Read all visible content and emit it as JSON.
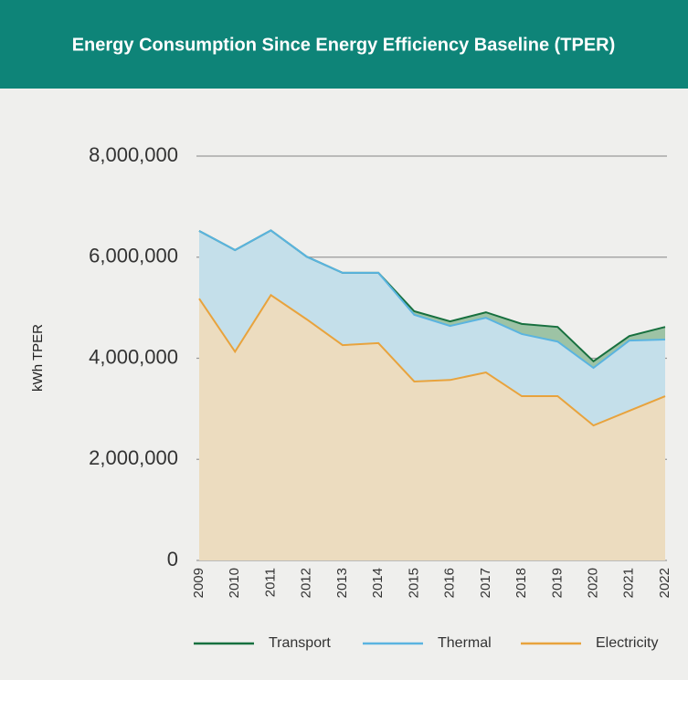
{
  "chart_data": {
    "type": "stacked_area",
    "title": "Energy Consumption Since Energy Efficiency Baseline (TPER)",
    "y_label": "kWh TPER",
    "categories": [
      "2009",
      "2010",
      "2011",
      "2012",
      "2013",
      "2014",
      "2015",
      "2016",
      "2017",
      "2018",
      "2019",
      "2020",
      "2021",
      "2022"
    ],
    "series": [
      {
        "name": "Transport",
        "color": "#17703f",
        "fill": "#9dc3a5",
        "values": [
          0,
          0,
          0,
          0,
          0,
          0,
          70000,
          90000,
          110000,
          200000,
          290000,
          130000,
          90000,
          250000
        ]
      },
      {
        "name": "Thermal",
        "color": "#5ab4e0",
        "fill": "#c4dfea",
        "values": [
          1340000,
          2010000,
          1280000,
          1240000,
          1430000,
          1390000,
          1320000,
          1070000,
          1080000,
          1230000,
          1080000,
          1140000,
          1390000,
          1120000
        ]
      },
      {
        "name": "Electricity",
        "color": "#e8a33d",
        "fill": "#ecdcbf",
        "values": [
          5180000,
          4130000,
          5250000,
          4770000,
          4260000,
          4300000,
          3540000,
          3570000,
          3720000,
          3250000,
          3250000,
          2670000,
          2960000,
          3250000
        ]
      }
    ],
    "ylim": [
      0,
      8000000
    ],
    "yticks": [
      0,
      {
        "value": 2000000,
        "label": "2,000,000"
      },
      {
        "value": 4000000,
        "label": "4,000,000"
      },
      {
        "value": 6000000,
        "label": "6,000,000"
      },
      {
        "value": 8000000,
        "label": "8,000,000"
      }
    ],
    "grid": true,
    "legend": "bottom"
  }
}
